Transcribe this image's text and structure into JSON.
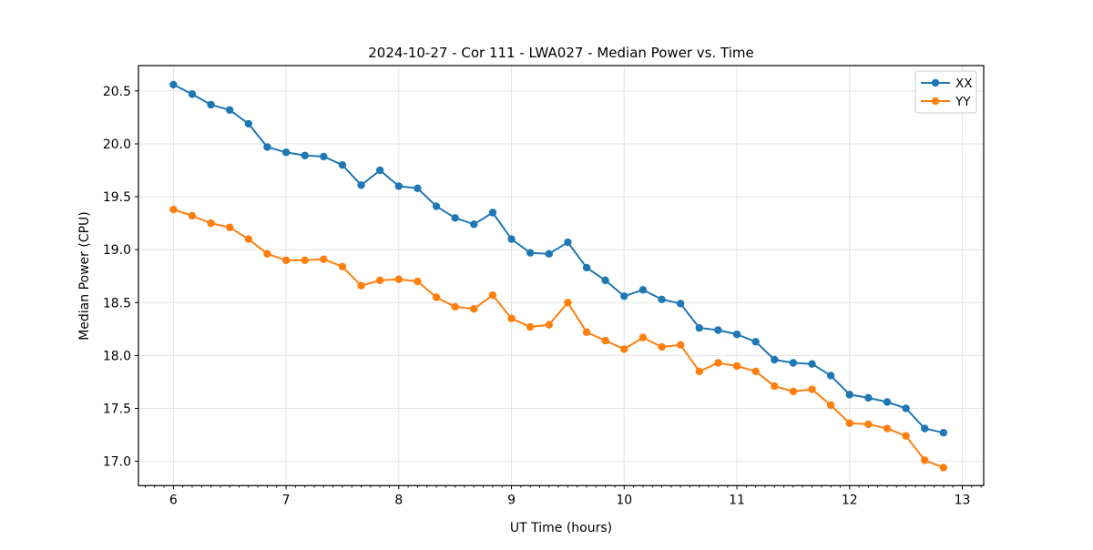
{
  "chart_data": {
    "type": "line",
    "title": "2024-10-27 - Cor 111 - LWA027 - Median Power vs. Time",
    "xlabel": "UT Time (hours)",
    "ylabel": "Median Power (CPU)",
    "legend_position": "upper right",
    "grid": true,
    "xlim": [
      5.69,
      13.19
    ],
    "ylim": [
      16.77,
      20.74
    ],
    "x_ticks": [
      6,
      7,
      8,
      9,
      10,
      11,
      12,
      13
    ],
    "x_tick_labels": [
      "6",
      "7",
      "8",
      "9",
      "10",
      "11",
      "12",
      "13"
    ],
    "y_ticks": [
      17.0,
      17.5,
      18.0,
      18.5,
      19.0,
      19.5,
      20.0,
      20.5
    ],
    "y_tick_labels": [
      "17.0",
      "17.5",
      "18.0",
      "18.5",
      "19.0",
      "19.5",
      "20.0",
      "20.5"
    ],
    "minor_x_tick_step": 0.0833333,
    "x": [
      6.0,
      6.1667,
      6.3333,
      6.5,
      6.6667,
      6.8333,
      7.0,
      7.1667,
      7.3333,
      7.5,
      7.6667,
      7.8333,
      8.0,
      8.1667,
      8.3333,
      8.5,
      8.6667,
      8.8333,
      9.0,
      9.1667,
      9.3333,
      9.5,
      9.6667,
      9.8333,
      10.0,
      10.1667,
      10.3333,
      10.5,
      10.6667,
      10.8333,
      11.0,
      11.1667,
      11.3333,
      11.5,
      11.6667,
      11.8333,
      12.0,
      12.1667,
      12.3333,
      12.5,
      12.6667,
      12.8333
    ],
    "series": [
      {
        "name": "XX",
        "color": "#1f77b4",
        "values": [
          20.56,
          20.47,
          20.37,
          20.32,
          20.19,
          19.97,
          19.92,
          19.89,
          19.88,
          19.8,
          19.61,
          19.75,
          19.6,
          19.58,
          19.41,
          19.3,
          19.24,
          19.35,
          19.1,
          18.97,
          18.96,
          19.07,
          18.83,
          18.71,
          18.56,
          18.62,
          18.53,
          18.49,
          18.26,
          18.24,
          18.2,
          18.13,
          17.96,
          17.93,
          17.92,
          17.81,
          17.63,
          17.6,
          17.56,
          17.5,
          17.31,
          17.27
        ]
      },
      {
        "name": "YY",
        "color": "#ff7f0e",
        "values": [
          19.38,
          19.32,
          19.25,
          19.21,
          19.1,
          18.96,
          18.9,
          18.9,
          18.91,
          18.84,
          18.66,
          18.71,
          18.72,
          18.7,
          18.55,
          18.46,
          18.44,
          18.57,
          18.35,
          18.27,
          18.29,
          18.5,
          18.22,
          18.14,
          18.06,
          18.17,
          18.08,
          18.1,
          17.85,
          17.93,
          17.9,
          17.85,
          17.71,
          17.66,
          17.68,
          17.53,
          17.36,
          17.35,
          17.31,
          17.24,
          17.01,
          16.94
        ]
      }
    ],
    "style": {
      "grid_color": "#e3e3e3",
      "spine_color": "#000000",
      "background": "#ffffff",
      "legend_border": "#cccccc"
    }
  }
}
